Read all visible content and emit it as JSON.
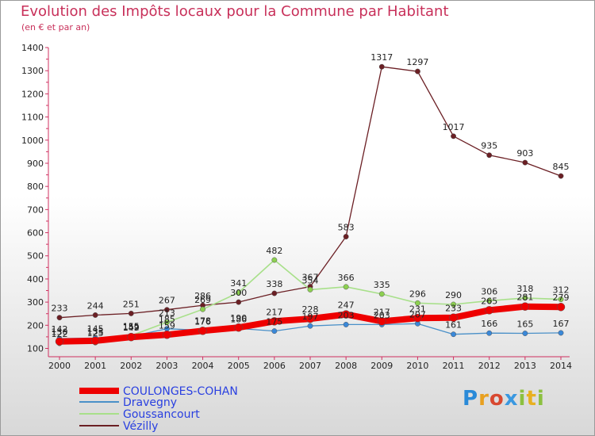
{
  "title": "Evolution des Impôts locaux pour la Commune par Habitant",
  "subtitle": "(en € et par an)",
  "logo_text": "Proxiti",
  "colors": {
    "title": "#c8305a",
    "axis": "#d03060",
    "grid": "#dddddd"
  },
  "chart_data": {
    "type": "line",
    "title": "Evolution des Impôts locaux pour la Commune par Habitant",
    "subtitle": "(en € et par an)",
    "xlabel": "",
    "ylabel": "",
    "ylim": [
      100,
      1400
    ],
    "yticks": [
      100,
      200,
      300,
      400,
      500,
      600,
      700,
      800,
      900,
      1000,
      1100,
      1200,
      1300,
      1400
    ],
    "grid": false,
    "legend_position": "bottom-left",
    "x": [
      "2000",
      "2001",
      "2002",
      "2003",
      "2004",
      "2005",
      "2006",
      "2007",
      "2008",
      "2009",
      "2010",
      "2011",
      "2012",
      "2013",
      "2014"
    ],
    "series": [
      {
        "name": "Vézilly",
        "color": "#6b1f24",
        "marker": "#6b1f24",
        "width": 1.3,
        "values": [
          233,
          244,
          251,
          267,
          286,
          300,
          338,
          367,
          583,
          1317,
          1297,
          1017,
          935,
          903,
          845
        ]
      },
      {
        "name": "Goussancourt",
        "color": "#a8e08a",
        "marker": "#8cd050",
        "width": 1.6,
        "values": [
          122,
          125,
          155,
          213,
          269,
          341,
          482,
          354,
          366,
          335,
          296,
          290,
          306,
          318,
          312
        ]
      },
      {
        "name": "Dravegny",
        "color": "#4a90c8",
        "marker": "#3a88d8",
        "width": 1.3,
        "values": [
          142,
          145,
          152,
          185,
          178,
          186,
          175,
          197,
          203,
          203,
          207,
          161,
          166,
          165,
          167
        ]
      },
      {
        "name": "COULONGES-COHAN",
        "color": "#ee0000",
        "marker": "#ee0000",
        "width": 8,
        "values": [
          130,
          133,
          149,
          159,
          176,
          190,
          217,
          228,
          247,
          217,
          231,
          233,
          265,
          281,
          279
        ]
      }
    ],
    "legend": [
      "COULONGES-COHAN",
      "Dravegny",
      "Goussancourt",
      "Vézilly"
    ]
  }
}
